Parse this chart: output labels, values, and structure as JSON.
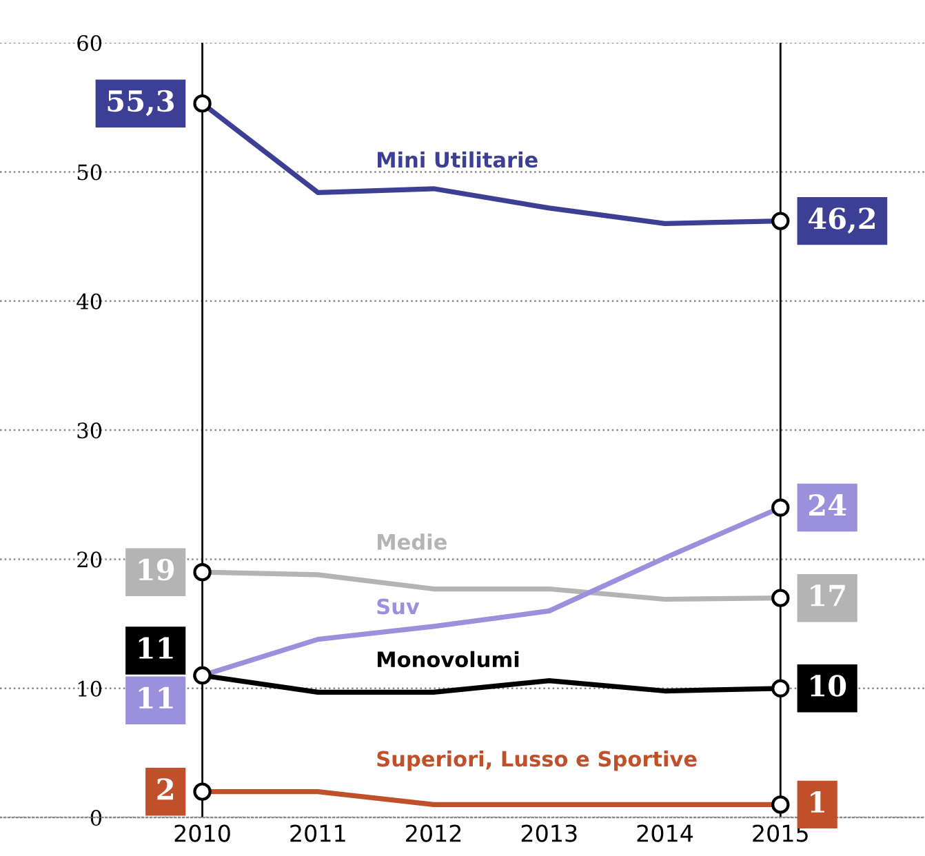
{
  "chart_data": {
    "type": "line",
    "x": [
      2010,
      2011,
      2012,
      2013,
      2014,
      2015
    ],
    "xlim": [
      2008.25,
      2016.25
    ],
    "xticks": [
      2010,
      2011,
      2012,
      2013,
      2014,
      2015
    ],
    "ylim": [
      0,
      60
    ],
    "yticks": [
      0,
      10,
      20,
      30,
      40,
      50,
      60
    ],
    "grid": "y",
    "series": [
      {
        "name": "Mini Utilitarie",
        "color": "#3d3f94",
        "values": [
          55.3,
          48.4,
          48.7,
          47.2,
          46.0,
          46.2
        ],
        "value_labels": [
          "55,3",
          null,
          null,
          null,
          null,
          "46,2"
        ]
      },
      {
        "name": "Medie",
        "color": "#b4b4b4",
        "values": [
          19,
          18.8,
          17.7,
          17.7,
          16.9,
          17
        ],
        "value_labels": [
          "19",
          null,
          null,
          null,
          null,
          "17"
        ]
      },
      {
        "name": "Suv",
        "color": "#9b90dc",
        "values": [
          11,
          13.8,
          14.8,
          16,
          20.1,
          24
        ],
        "value_labels": [
          "11",
          null,
          null,
          null,
          null,
          "24"
        ]
      },
      {
        "name": "Monovolumi",
        "color": "#000000",
        "values": [
          11,
          9.7,
          9.7,
          10.6,
          9.8,
          10
        ],
        "value_labels": [
          "11",
          null,
          null,
          null,
          null,
          "10"
        ]
      },
      {
        "name": "Superiori, Lusso e Sportive",
        "color": "#c0502a",
        "values": [
          2,
          2,
          1,
          1,
          1,
          1
        ],
        "value_labels": [
          "2",
          null,
          null,
          null,
          null,
          "1"
        ]
      }
    ],
    "ref_lines": [
      {
        "axis": "x",
        "value": 2010,
        "color": "#000000"
      },
      {
        "axis": "x",
        "value": 2015,
        "color": "#000000"
      }
    ]
  }
}
